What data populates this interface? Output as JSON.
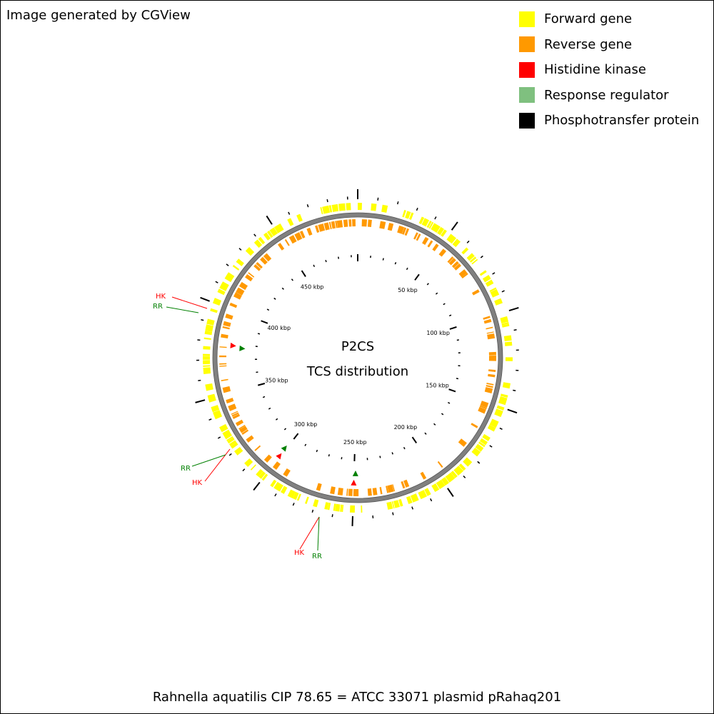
{
  "credit": "Image generated by CGView",
  "legend": [
    {
      "label": "Forward gene",
      "color": "#ffff00"
    },
    {
      "label": "Reverse gene",
      "color": "#ff9900"
    },
    {
      "label": "Histidine kinase",
      "color": "#ff0000"
    },
    {
      "label": "Response regulator",
      "color": "#7fc07f"
    },
    {
      "label": "Phosphotransfer protein",
      "color": "#000000"
    }
  ],
  "center": {
    "line1": "P2CS",
    "line2": "TCS distribution"
  },
  "caption": "Rahnella aquatilis CIP 78.65 = ATCC 33071 plasmid pRahaq201",
  "plasmid": {
    "length_kbp": 495,
    "tick_labels": [
      "50 kbp",
      "100 kbp",
      "150 kbp",
      "200 kbp",
      "250 kbp",
      "300 kbp",
      "350 kbp",
      "400 kbp",
      "450 kbp"
    ]
  },
  "tcs_loci": [
    {
      "hk_label": "HK",
      "rr_label": "RR",
      "hk_kbp": 378.8,
      "rr_kbp": 377.5
    },
    {
      "hk_label": "HK",
      "rr_label": "RR",
      "hk_kbp": 300.5,
      "rr_kbp": 301.0
    },
    {
      "hk_label": "HK",
      "rr_label": "RR",
      "hk_kbp": 250.0,
      "rr_kbp": 249.0
    }
  ],
  "colors": {
    "forward": "#ffff00",
    "reverse": "#ff9900",
    "hk": "#ff0000",
    "rr": "#008000",
    "backbone": "#808080"
  }
}
